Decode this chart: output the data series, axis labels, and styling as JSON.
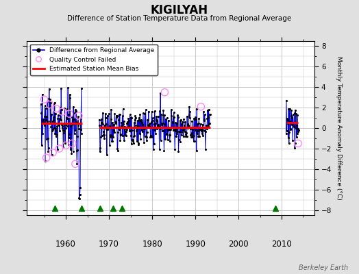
{
  "title": "KIGILYAH",
  "subtitle": "Difference of Station Temperature Data from Regional Average",
  "ylabel": "Monthly Temperature Anomaly Difference (°C)",
  "ylim": [
    -8.5,
    8.5
  ],
  "xlim": [
    1951,
    2017.5
  ],
  "bg_color": "#e0e0e0",
  "plot_bg_color": "#ffffff",
  "grid_color": "#c8c8c8",
  "line_color": "#0000cc",
  "marker_color": "#000000",
  "bias_color": "#ff0000",
  "qc_color": "#ff88ff",
  "record_gap_color": "#007700",
  "obs_change_color": "#0000ff",
  "empirical_break_color": "#000000",
  "station_move_color": "#ff0000",
  "watermark": "Berkeley Earth",
  "segment1_start": 1954.25,
  "segment1_end": 1963.75,
  "segment2_start": 1967.75,
  "segment2_end": 1993.5,
  "segment3_start": 2011.0,
  "segment3_end": 2013.75,
  "bias1": 0.5,
  "bias2": 0.08,
  "bias3": 0.55,
  "record_gap_years": [
    1957.5,
    1963.7,
    1968.0,
    1971.0,
    1973.0,
    2008.5
  ],
  "triangle_y": -7.8
}
